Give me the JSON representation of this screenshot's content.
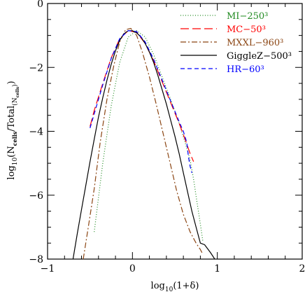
{
  "chart_data": {
    "type": "line",
    "xlabel": "log₁₀(1+δ)",
    "ylabel": "log₁₀(Nₑₑₗₗₛ/Total₍ₙ₎)",
    "xlabel_parts": {
      "main": "log",
      "sub": "10",
      "rest": "(1+δ)"
    },
    "ylabel_parts": {
      "a": "log",
      "b": "10",
      "c": "(N",
      "d": "cells",
      "e": "/Total",
      "f": "(N",
      "g": "cells",
      "h": ")",
      "i": ")"
    },
    "xlim": [
      -1,
      2
    ],
    "ylim": [
      -8,
      0
    ],
    "xticks": [
      -1,
      0,
      1,
      2
    ],
    "yticks": [
      0,
      -2,
      -4,
      -6,
      -8
    ],
    "xtick_labels": [
      "−1",
      "0",
      "1",
      "2"
    ],
    "ytick_labels": [
      "0",
      "−2",
      "−4",
      "−6",
      "−8"
    ],
    "grid": false,
    "legend_position": "top-right",
    "series": [
      {
        "name": "MI−250³",
        "color": "#228b22",
        "dash": "1,2.5",
        "x": [
          -0.45,
          -0.35,
          -0.25,
          -0.15,
          -0.05,
          0.05,
          0.15,
          0.25,
          0.35,
          0.45,
          0.55,
          0.62,
          0.68,
          0.72,
          0.76,
          0.8,
          0.83
        ],
        "y": [
          -7.15,
          -5.0,
          -3.2,
          -1.85,
          -1.05,
          -0.85,
          -1.05,
          -1.6,
          -2.3,
          -3.0,
          -3.75,
          -4.35,
          -4.9,
          -5.5,
          -6.2,
          -6.9,
          -7.45
        ]
      },
      {
        "name": "MC−50³",
        "color": "#ff0000",
        "dash": "12,5",
        "x": [
          -0.5,
          -0.45,
          -0.35,
          -0.25,
          -0.15,
          -0.05,
          0.05,
          0.15,
          0.25,
          0.35,
          0.45,
          0.55,
          0.62,
          0.68,
          0.72
        ],
        "y": [
          -3.85,
          -3.35,
          -2.5,
          -1.7,
          -1.1,
          -0.85,
          -0.9,
          -1.25,
          -1.8,
          -2.45,
          -3.1,
          -3.75,
          -4.25,
          -4.7,
          -4.95
        ]
      },
      {
        "name": "MXXL−960³",
        "color": "#8b4513",
        "dash": "8,3,2,3",
        "x": [
          -0.58,
          -0.52,
          -0.45,
          -0.38,
          -0.3,
          -0.22,
          -0.15,
          -0.08,
          -0.02,
          0.05,
          0.12,
          0.2,
          0.28,
          0.36,
          0.44,
          0.52,
          0.6,
          0.68,
          0.75,
          0.8,
          0.83
        ],
        "y": [
          -8.0,
          -7.0,
          -5.8,
          -4.35,
          -3.0,
          -1.95,
          -1.2,
          -0.82,
          -0.78,
          -1.0,
          -1.55,
          -2.3,
          -3.15,
          -4.05,
          -4.95,
          -5.85,
          -6.6,
          -7.15,
          -7.5,
          -7.7,
          -7.85
        ]
      },
      {
        "name": "GiggleZ−500³",
        "color": "#000000",
        "dash": "",
        "x": [
          -0.7,
          -0.65,
          -0.6,
          -0.55,
          -0.5,
          -0.45,
          -0.4,
          -0.35,
          -0.3,
          -0.25,
          -0.2,
          -0.15,
          -0.1,
          -0.05,
          0.0,
          0.05,
          0.1,
          0.15,
          0.2,
          0.25,
          0.3,
          0.35,
          0.4,
          0.45,
          0.5,
          0.55,
          0.6,
          0.65,
          0.7,
          0.75,
          0.8,
          0.85,
          0.92,
          0.97
        ],
        "y": [
          -8.0,
          -7.2,
          -6.45,
          -5.7,
          -4.95,
          -4.25,
          -3.55,
          -2.95,
          -2.4,
          -1.9,
          -1.48,
          -1.15,
          -0.95,
          -0.85,
          -0.85,
          -0.92,
          -1.05,
          -1.25,
          -1.52,
          -1.85,
          -2.25,
          -2.7,
          -3.15,
          -3.65,
          -4.15,
          -4.7,
          -5.3,
          -5.9,
          -6.5,
          -7.0,
          -7.5,
          -7.55,
          -7.8,
          -8.0
        ]
      },
      {
        "name": "HR−60³",
        "color": "#0000ff",
        "dash": "6,4",
        "x": [
          -0.5,
          -0.45,
          -0.35,
          -0.25,
          -0.15,
          -0.05,
          0.05,
          0.15,
          0.25,
          0.35,
          0.45,
          0.55,
          0.6,
          0.64,
          0.66,
          0.68,
          0.7
        ],
        "y": [
          -3.9,
          -3.45,
          -2.55,
          -1.72,
          -1.1,
          -0.85,
          -0.88,
          -1.2,
          -1.75,
          -2.4,
          -3.05,
          -3.7,
          -4.0,
          -4.35,
          -4.8,
          -5.1,
          -5.3
        ]
      }
    ]
  }
}
